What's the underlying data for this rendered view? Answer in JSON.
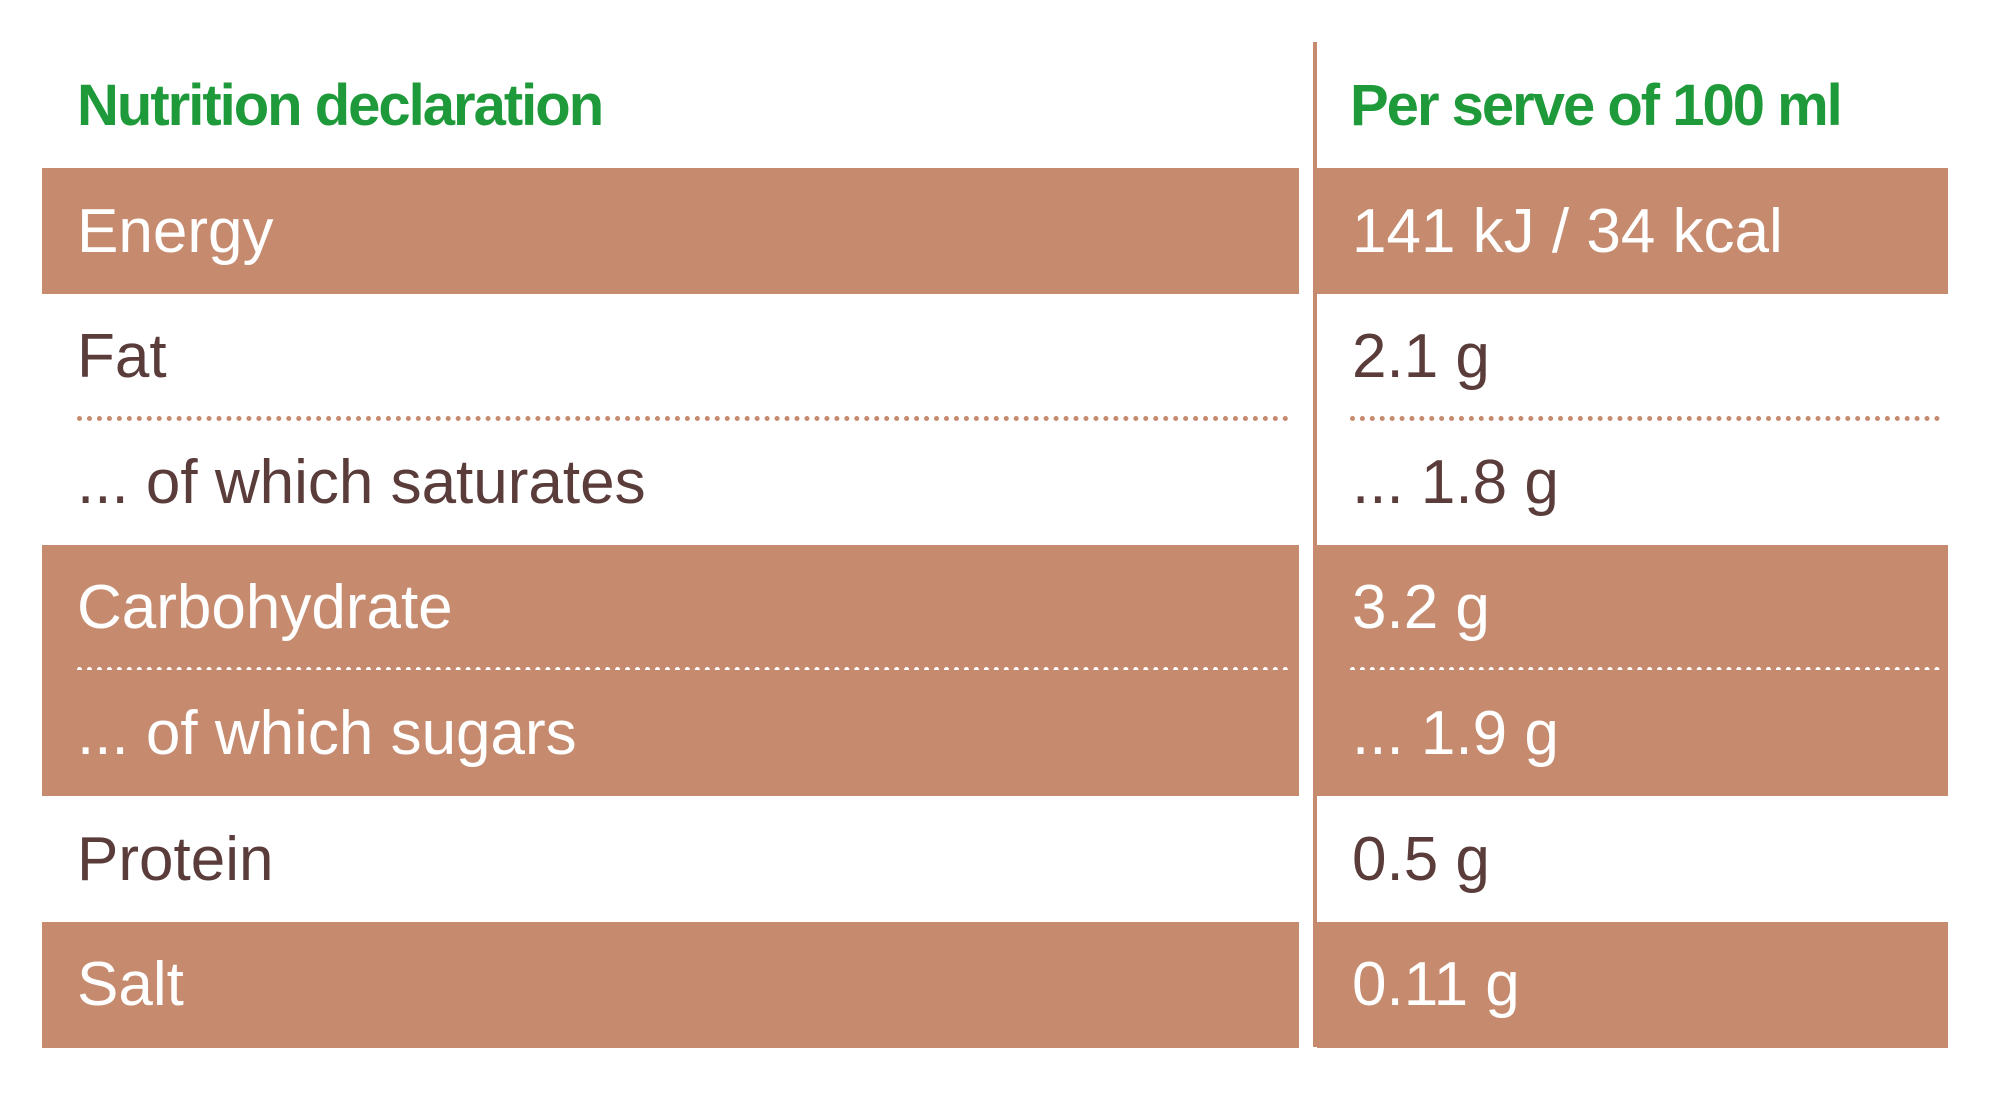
{
  "header": {
    "left": "Nutrition declaration",
    "right": "Per serve of 100 ml"
  },
  "rows": [
    {
      "label": "Energy",
      "value": "141 kJ / 34 kcal"
    },
    {
      "label": "Fat",
      "value": "2.1 g"
    },
    {
      "label": "... of which saturates",
      "value": "... 1.8 g"
    },
    {
      "label": "Carbohydrate",
      "value": "3.2 g"
    },
    {
      "label": "... of which sugars",
      "value": "... 1.9 g"
    },
    {
      "label": "Protein",
      "value": "0.5 g"
    },
    {
      "label": "Salt",
      "value": "0.11 g"
    }
  ]
}
